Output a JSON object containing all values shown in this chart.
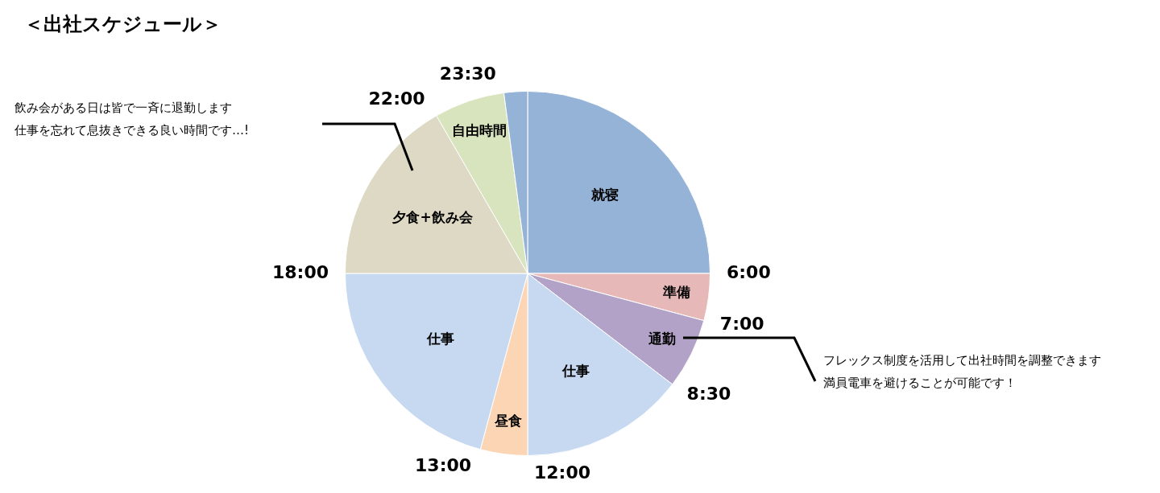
{
  "chart_data": {
    "type": "pie",
    "title": "＜出社スケジュール＞",
    "categories": [
      "就寝",
      "準備",
      "通勤",
      "仕事",
      "昼食",
      "仕事",
      "夕食+飲み会",
      "自由時間",
      null
    ],
    "values": [
      25,
      4.17,
      6.25,
      14.58,
      4.17,
      20.83,
      16.67,
      6.25,
      2.08
    ],
    "colors": [
      "#95b3d7",
      "#e6b9b8",
      "#b3a2c7",
      "#c6d9f1",
      "#fcd5b5",
      "#c6d9f1",
      "#ddd9c4",
      "#d7e4bd",
      "#95b3d7"
    ],
    "legend": false,
    "annotations": [
      "6:00",
      "7:00",
      "8:30",
      "12:00",
      "13:00",
      "18:00",
      "22:00",
      "23:30",
      "飲み会がある日は皆で一斉に退勤します",
      "仕事を忘れて息抜きできる良い時間です…!",
      "フレックス制度を活用して出社時間を調整できます",
      "満員電車を避けることが可能です！"
    ]
  }
}
